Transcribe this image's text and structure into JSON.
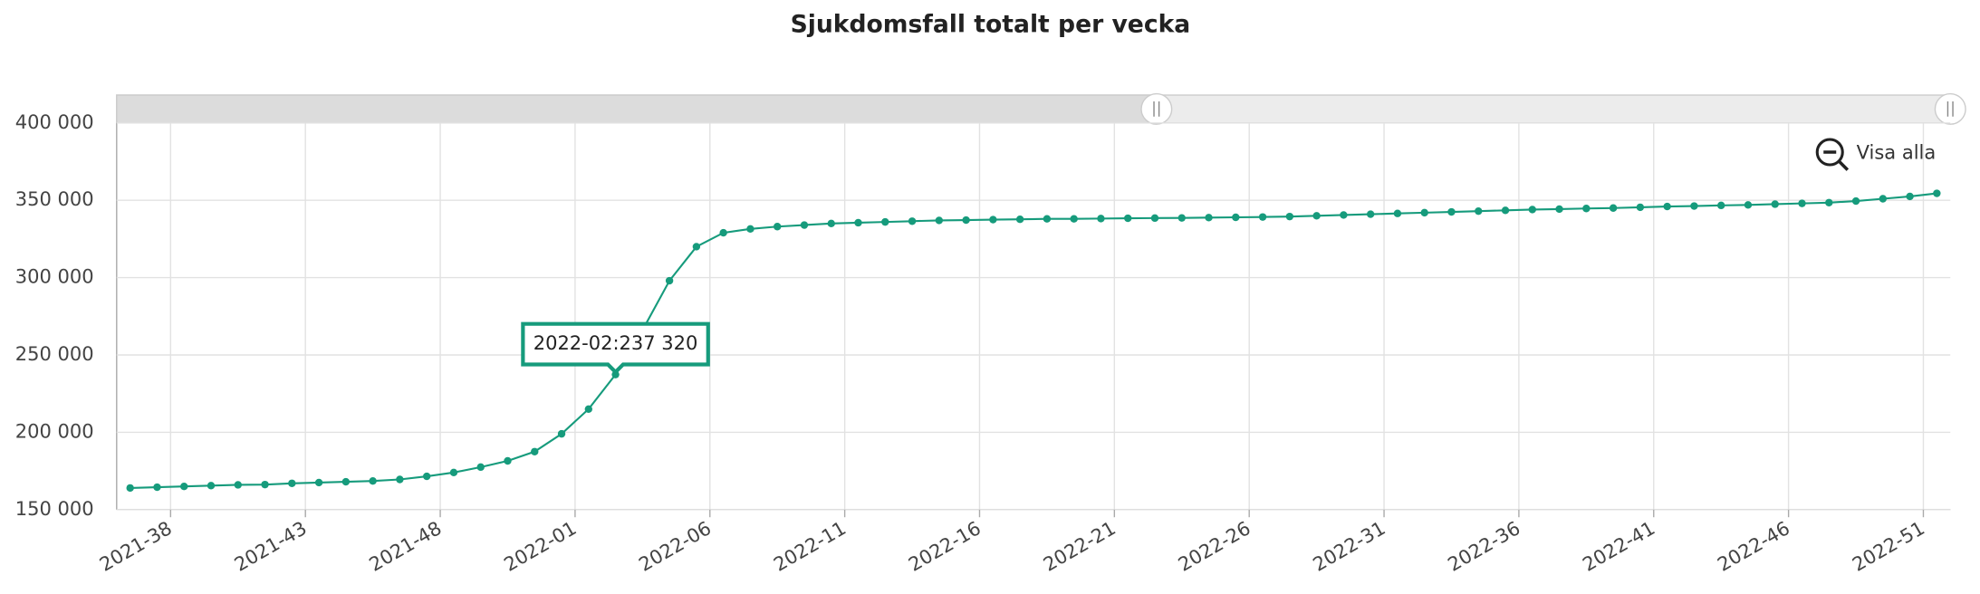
{
  "chart_data": {
    "type": "line",
    "title": "Sjukdomsfall totalt per vecka",
    "categories": [
      null,
      null,
      "2021-38",
      null,
      null,
      null,
      null,
      "2021-43",
      null,
      null,
      null,
      null,
      "2021-48",
      null,
      null,
      null,
      null,
      "2022-01",
      null,
      null,
      null,
      null,
      "2022-06",
      null,
      null,
      null,
      null,
      "2022-11",
      null,
      null,
      null,
      null,
      "2022-16",
      null,
      null,
      null,
      null,
      "2022-21",
      null,
      null,
      null,
      null,
      "2022-26",
      null,
      null,
      null,
      null,
      "2022-31",
      null,
      null,
      null,
      null,
      "2022-36",
      null,
      null,
      null,
      null,
      "2022-41",
      null,
      null,
      null,
      null,
      "2022-46",
      null,
      null,
      null,
      null,
      "2022-51"
    ],
    "series": [
      {
        "color": "#169b7c",
        "values": [
          164000,
          164500,
          165000,
          165500,
          166000,
          166200,
          167000,
          167500,
          168000,
          168500,
          169500,
          171500,
          174000,
          177500,
          181500,
          187500,
          199000,
          215000,
          237320,
          266000,
          298000,
          320000,
          329000,
          331500,
          333000,
          334000,
          335000,
          335500,
          336000,
          336500,
          337000,
          337200,
          337500,
          337700,
          338000,
          338000,
          338200,
          338400,
          338500,
          338600,
          338800,
          339000,
          339200,
          339500,
          340000,
          340500,
          341000,
          341500,
          342000,
          342500,
          343000,
          343500,
          344000,
          344300,
          344700,
          345000,
          345500,
          346000,
          346300,
          346700,
          347000,
          347500,
          348000,
          348500,
          349500,
          351000,
          352500,
          354500
        ]
      }
    ],
    "ylim": [
      150000,
      400000
    ],
    "yticks": [
      {
        "value": 150000,
        "label": "150 000"
      },
      {
        "value": 200000,
        "label": "200 000"
      },
      {
        "value": 250000,
        "label": "250 000"
      },
      {
        "value": 300000,
        "label": "300 000"
      },
      {
        "value": 350000,
        "label": "350 000"
      },
      {
        "value": 400000,
        "label": "400 000"
      }
    ],
    "grid": true,
    "tooltip": {
      "index": 18,
      "text": "2022-02:237 320"
    },
    "reset_button": "Visa alla"
  }
}
